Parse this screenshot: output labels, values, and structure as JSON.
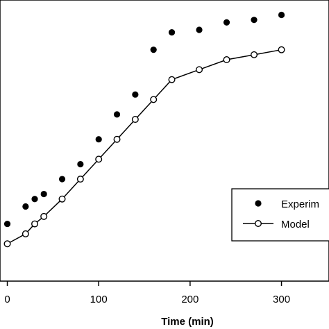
{
  "chart_data": {
    "type": "line",
    "xlabel": "Time (min)",
    "ylabel": "",
    "title": "",
    "xlim": [
      -8,
      352
    ],
    "ylim": [
      -0.05,
      1.08
    ],
    "x_ticks": [
      0,
      100,
      200,
      300
    ],
    "x_tick_labels": [
      "0",
      "100",
      "200",
      "300"
    ],
    "grid": false,
    "legend": {
      "position": "right",
      "entries": [
        "Experim",
        "Model"
      ]
    },
    "series": [
      {
        "name": "Experim",
        "style": "points",
        "marker": "filled-circle",
        "color": "#000000",
        "x": [
          0,
          20,
          30,
          40,
          60,
          80,
          100,
          120,
          140,
          160,
          180,
          210,
          240,
          270,
          300
        ],
        "y": [
          0.18,
          0.25,
          0.28,
          0.3,
          0.36,
          0.42,
          0.52,
          0.62,
          0.7,
          0.88,
          0.95,
          0.96,
          0.99,
          1.0,
          1.02
        ]
      },
      {
        "name": "Model",
        "style": "line-markers",
        "marker": "open-circle",
        "color": "#000000",
        "x": [
          0,
          20,
          30,
          40,
          60,
          80,
          100,
          120,
          140,
          160,
          180,
          210,
          240,
          270,
          300
        ],
        "y": [
          0.1,
          0.14,
          0.18,
          0.21,
          0.28,
          0.36,
          0.44,
          0.52,
          0.6,
          0.68,
          0.76,
          0.8,
          0.84,
          0.86,
          0.88
        ]
      }
    ]
  }
}
